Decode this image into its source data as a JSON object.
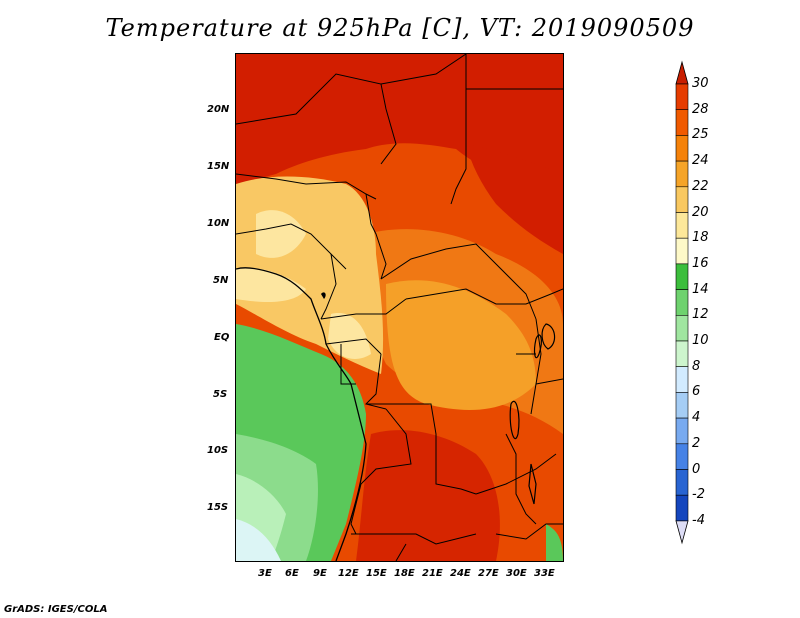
{
  "title": "Temperature at 925hPa [C], VT: 2019090509",
  "credit": "GrADS: IGES/COLA",
  "lat_labels": [
    "20N",
    "15N",
    "10N",
    "5N",
    "EQ",
    "5S",
    "10S",
    "15S"
  ],
  "lon_labels": [
    "3E",
    "6E",
    "9E",
    "12E",
    "15E",
    "18E",
    "21E",
    "24E",
    "27E",
    "30E",
    "33E"
  ],
  "colorbar": {
    "labels": [
      "30",
      "28",
      "25",
      "24",
      "22",
      "20",
      "18",
      "16",
      "14",
      "12",
      "10",
      "8",
      "6",
      "4",
      "2",
      "0",
      "-2",
      "-4"
    ],
    "colors": [
      "#c81e00",
      "#e63c00",
      "#f05a00",
      "#f5820a",
      "#f5a428",
      "#f9c860",
      "#fde89a",
      "#fef9c8",
      "#3cbe3c",
      "#6ed26e",
      "#a0e6a0",
      "#cdf5cd",
      "#d2ebff",
      "#a5cdf5",
      "#78aaf0",
      "#4682e6",
      "#2864d2",
      "#1446be",
      "#0a2896"
    ],
    "top_color": "#c81e00",
    "bottom_color": "#dcdcf5"
  },
  "map_colors": {
    "hot": "#d21e00",
    "warm": "#e84a00",
    "orange": "#f07814",
    "light_orange": "#f5a028",
    "yellow": "#f9c864",
    "pale": "#fde6a0",
    "green": "#5ac85a",
    "light_green": "#8cdc8c",
    "mint": "#b9f0b9",
    "ice": "#dcf5f5"
  }
}
